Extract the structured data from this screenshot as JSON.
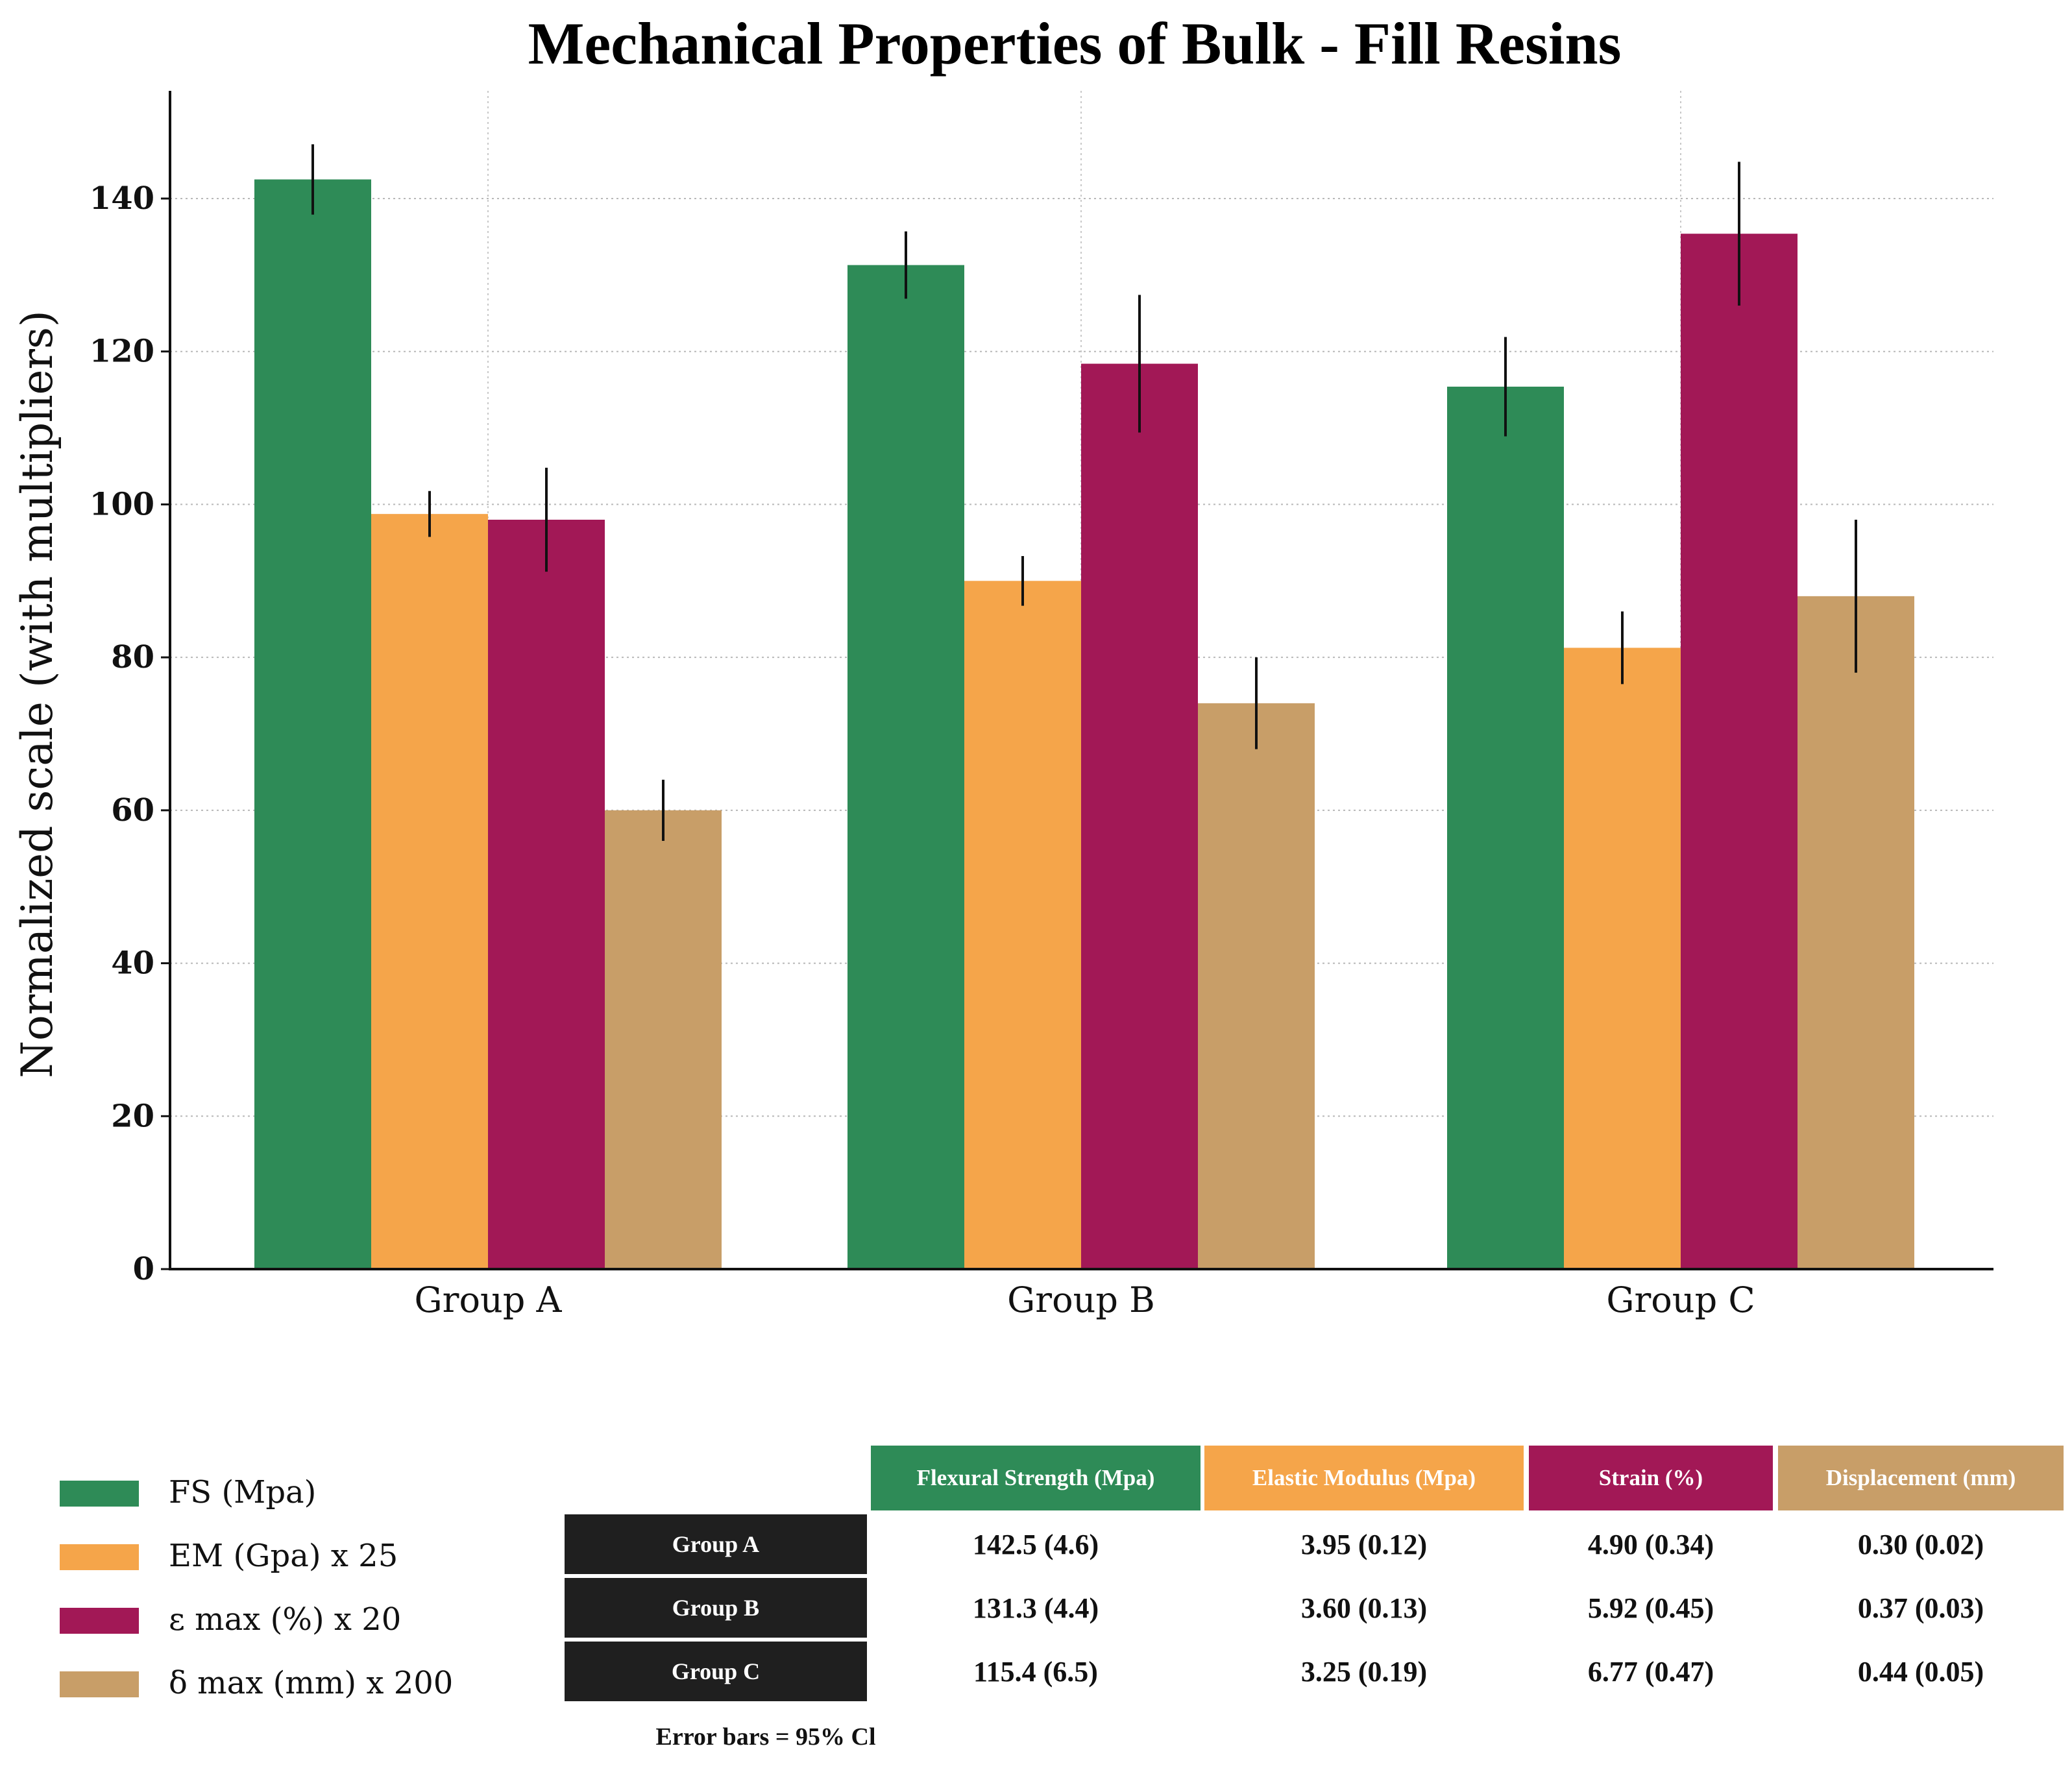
{
  "chart_data": {
    "type": "bar",
    "title": "Mechanical Properties of Bulk - Fill Resins",
    "xlabel": "",
    "ylabel": "Normalized scale (with multipliers)",
    "ylim": [
      0,
      155
    ],
    "yticks": [
      0,
      20,
      40,
      60,
      80,
      100,
      120,
      140
    ],
    "grid": true,
    "categories": [
      "Group A",
      "Group B",
      "Group C"
    ],
    "series": [
      {
        "name": "FS (Mpa)",
        "color": "#2e8b57",
        "values": [
          142.5,
          131.3,
          115.4
        ],
        "errors": [
          4.6,
          4.4,
          6.5
        ]
      },
      {
        "name": "EM (Gpa) x 25",
        "color": "#f5a54a",
        "values": [
          98.75,
          90.0,
          81.25
        ],
        "errors": [
          3.0,
          3.25,
          4.75
        ]
      },
      {
        "name": "ε max (%) x 20",
        "color": "#a21856",
        "values": [
          98.0,
          118.4,
          135.4
        ],
        "errors": [
          6.8,
          9.0,
          9.4
        ]
      },
      {
        "name": "δ max  (mm) x 200",
        "color": "#c89e68",
        "values": [
          60.0,
          74.0,
          88.0
        ],
        "errors": [
          4.0,
          6.0,
          10.0
        ]
      }
    ]
  },
  "legend": {
    "placement": "bottom-left",
    "items": [
      {
        "label": "FS (Mpa)",
        "color": "#2e8b57"
      },
      {
        "label": "EM (Gpa) x 25",
        "color": "#f5a54a"
      },
      {
        "label": "ε max (%) x 20",
        "color": "#a21856"
      },
      {
        "label": "δ max  (mm) x 200",
        "color": "#c89e68"
      }
    ]
  },
  "table": {
    "headers": [
      {
        "label": "Flexural Strength (Mpa)",
        "color": "#2e8b57"
      },
      {
        "label": "Elastic Modulus (Mpa)",
        "color": "#f5a54a"
      },
      {
        "label": "Strain (%)",
        "color": "#a21856"
      },
      {
        "label": "Displacement (mm)",
        "color": "#c89e68"
      }
    ],
    "rows": [
      {
        "group": "Group A",
        "cells": [
          "142.5 (4.6)",
          "3.95 (0.12)",
          "4.90 (0.34)",
          "0.30 (0.02)"
        ]
      },
      {
        "group": "Group B",
        "cells": [
          "131.3 (4.4)",
          "3.60 (0.13)",
          "5.92 (0.45)",
          "0.37 (0.03)"
        ]
      },
      {
        "group": "Group C",
        "cells": [
          "115.4 (6.5)",
          "3.25 (0.19)",
          "6.77 (0.47)",
          "0.44 (0.05)"
        ]
      }
    ],
    "row_header_color": "#1f1f1f"
  },
  "footnote": "Error bars = 95% Cl"
}
